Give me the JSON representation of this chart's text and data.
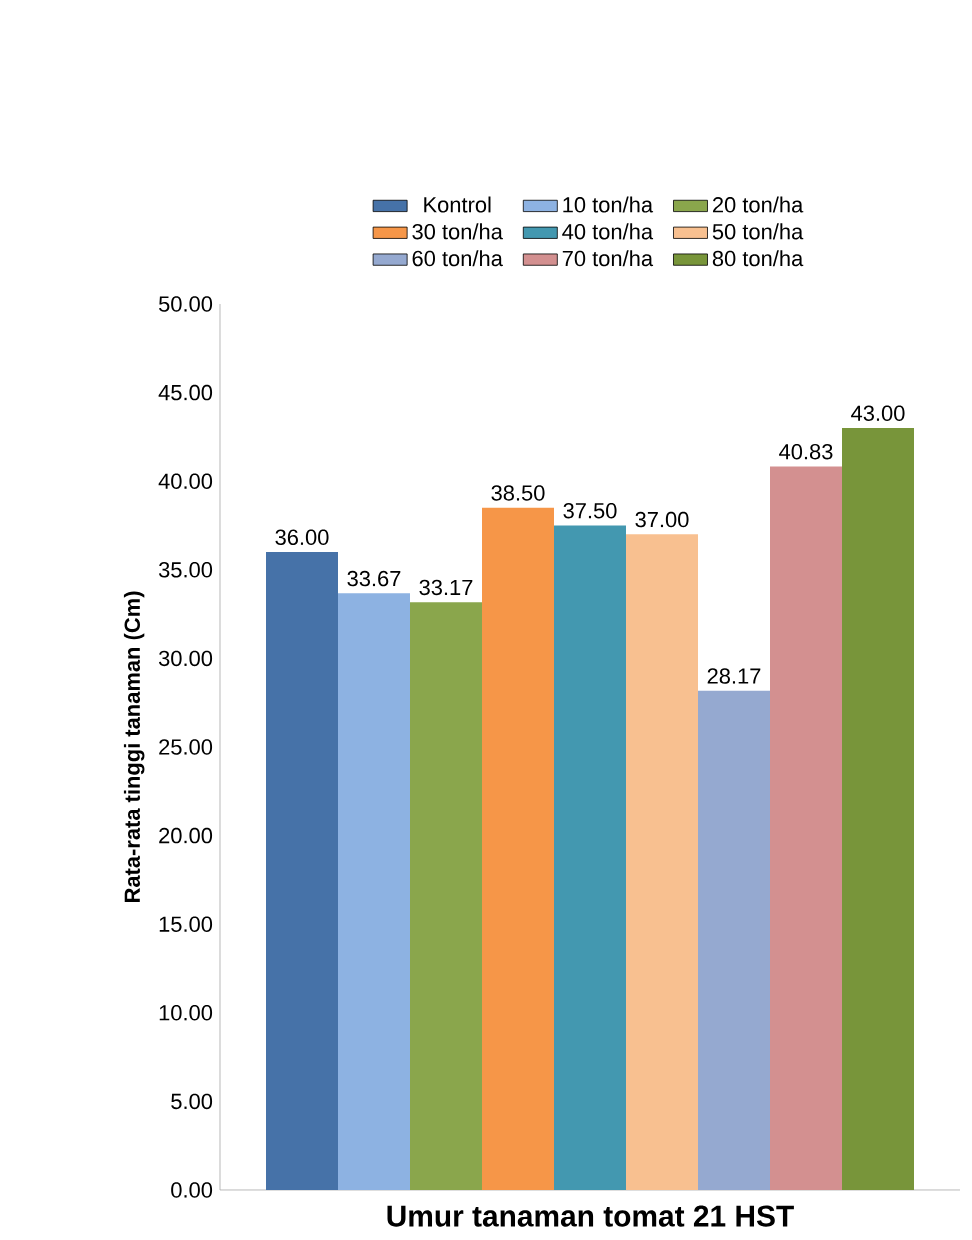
{
  "chart_data": {
    "type": "bar",
    "ylabel": "Rata-rata tinggi tanaman (Cm)",
    "categories": [
      "Umur tanaman tomat 21 HST"
    ],
    "series": [
      {
        "name": "Kontrol",
        "color": "#4672a8",
        "values": [
          36.0
        ],
        "value_labels": [
          "36.00"
        ]
      },
      {
        "name": "10 ton/ha",
        "color": "#8db2e2",
        "values": [
          33.67
        ],
        "value_labels": [
          "33.67"
        ]
      },
      {
        "name": "20 ton/ha",
        "color": "#8aa64c",
        "values": [
          33.17
        ],
        "value_labels": [
          "33.17"
        ]
      },
      {
        "name": "30 ton/ha",
        "color": "#f69648",
        "values": [
          38.5
        ],
        "value_labels": [
          "38.50"
        ]
      },
      {
        "name": "40 ton/ha",
        "color": "#4398b0",
        "values": [
          37.5
        ],
        "value_labels": [
          "37.50"
        ]
      },
      {
        "name": "50 ton/ha",
        "color": "#f8c090",
        "values": [
          37.0
        ],
        "value_labels": [
          "37.00"
        ]
      },
      {
        "name": "60 ton/ha",
        "color": "#95a9d0",
        "values": [
          28.17
        ],
        "value_labels": [
          "28.17"
        ]
      },
      {
        "name": "70 ton/ha",
        "color": "#d39090",
        "values": [
          40.83
        ],
        "value_labels": [
          "40.83"
        ]
      },
      {
        "name": "80 ton/ha",
        "color": "#78953a",
        "values": [
          43.0
        ],
        "value_labels": [
          "43.00"
        ]
      }
    ],
    "ylim": [
      0,
      50
    ],
    "yticks": [
      {
        "value": 0,
        "label": "0.00"
      },
      {
        "value": 5,
        "label": "5.00"
      },
      {
        "value": 10,
        "label": "10.00"
      },
      {
        "value": 15,
        "label": "15.00"
      },
      {
        "value": 20,
        "label": "20.00"
      },
      {
        "value": 25,
        "label": "25.00"
      },
      {
        "value": 30,
        "label": "30.00"
      },
      {
        "value": 35,
        "label": "35.00"
      },
      {
        "value": 40,
        "label": "40.00"
      },
      {
        "value": 45,
        "label": "45.00"
      },
      {
        "value": 50,
        "label": "50.00"
      }
    ],
    "grid": false,
    "legend": "top"
  }
}
